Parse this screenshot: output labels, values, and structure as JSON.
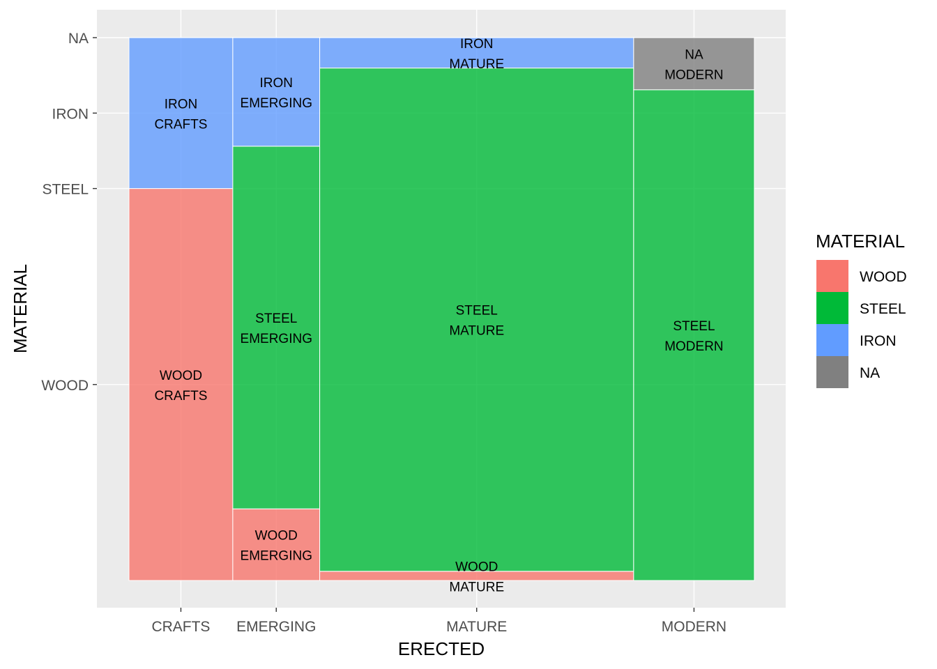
{
  "chart_data": {
    "type": "mosaic",
    "xlabel": "ERECTED",
    "ylabel": "MATERIAL",
    "x_categories": [
      "CRAFTS",
      "EMERGING",
      "MATURE",
      "MODERN"
    ],
    "x_fractions": [
      0.166,
      0.139,
      0.502,
      0.193
    ],
    "y_tick_labels": [
      {
        "label": "WOOD",
        "value": 0.361
      },
      {
        "label": "STEEL",
        "value": 0.722
      },
      {
        "label": "IRON",
        "value": 0.861
      },
      {
        "label": "NA",
        "value": 1.0
      }
    ],
    "fill_order": [
      "WOOD",
      "STEEL",
      "IRON",
      "NA"
    ],
    "columns": [
      {
        "category": "CRAFTS",
        "segments": [
          {
            "material": "WOOD",
            "fraction": 0.722
          },
          {
            "material": "STEEL",
            "fraction": 0.0
          },
          {
            "material": "IRON",
            "fraction": 0.278
          },
          {
            "material": "NA",
            "fraction": 0.0
          }
        ]
      },
      {
        "category": "EMERGING",
        "segments": [
          {
            "material": "WOOD",
            "fraction": 0.132
          },
          {
            "material": "STEEL",
            "fraction": 0.668
          },
          {
            "material": "IRON",
            "fraction": 0.2
          },
          {
            "material": "NA",
            "fraction": 0.0
          }
        ]
      },
      {
        "category": "MATURE",
        "segments": [
          {
            "material": "WOOD",
            "fraction": 0.017
          },
          {
            "material": "STEEL",
            "fraction": 0.927
          },
          {
            "material": "IRON",
            "fraction": 0.056
          },
          {
            "material": "NA",
            "fraction": 0.0
          }
        ]
      },
      {
        "category": "MODERN",
        "segments": [
          {
            "material": "WOOD",
            "fraction": 0.0
          },
          {
            "material": "STEEL",
            "fraction": 0.904
          },
          {
            "material": "IRON",
            "fraction": 0.0
          },
          {
            "material": "NA",
            "fraction": 0.096
          }
        ]
      }
    ],
    "legend": {
      "title": "MATERIAL",
      "placement": "right",
      "items": [
        {
          "label": "WOOD",
          "color": "#F8766D"
        },
        {
          "label": "STEEL",
          "color": "#00BA38"
        },
        {
          "label": "IRON",
          "color": "#619CFF"
        },
        {
          "label": "NA",
          "color": "#808080"
        }
      ]
    },
    "fill_alpha": 0.8,
    "panel_background": "#EBEBEB",
    "grid": true
  }
}
